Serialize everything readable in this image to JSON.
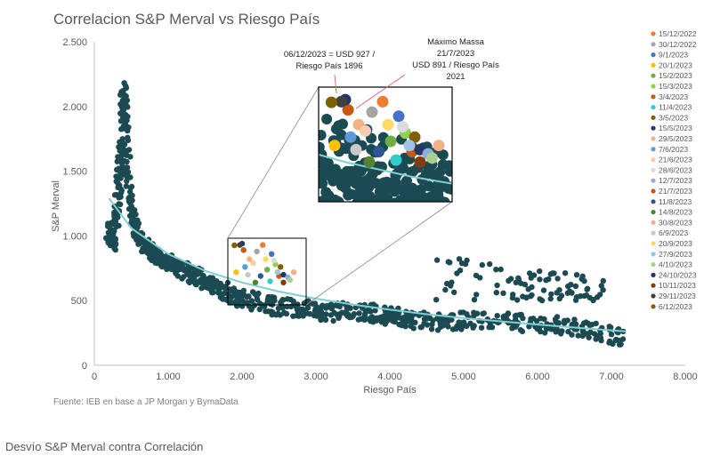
{
  "chart_data": {
    "type": "scatter",
    "title": "Correlacion S&P Merval vs Riesgo País",
    "xlabel": "Riesgo País",
    "ylabel": "S&P Merval",
    "xlim": [
      0,
      8000
    ],
    "ylim": [
      0,
      2500
    ],
    "xticks": [
      0,
      1000,
      2000,
      3000,
      4000,
      5000,
      6000,
      7000,
      8000
    ],
    "xtick_labels": [
      "0",
      "1.000",
      "2.000",
      "3.000",
      "4.000",
      "5.000",
      "6.000",
      "7.000",
      "8.000"
    ],
    "yticks": [
      0,
      500,
      1000,
      1500,
      2000,
      2500
    ],
    "ytick_labels": [
      "0",
      "500",
      "1.000",
      "1.500",
      "2.000",
      "2.500"
    ],
    "grid": false,
    "legend_position": "right",
    "colors": {
      "history": "#1b4a52",
      "trend": "#7fd0d3",
      "axis": "#bfbfbf"
    },
    "history_shape": [
      [
        200,
        1050
      ],
      [
        250,
        950
      ],
      [
        300,
        1150
      ],
      [
        350,
        1500
      ],
      [
        380,
        1900
      ],
      [
        400,
        2150
      ],
      [
        430,
        1700
      ],
      [
        480,
        1250
      ],
      [
        550,
        1050
      ],
      [
        650,
        950
      ],
      [
        750,
        880
      ],
      [
        850,
        850
      ],
      [
        950,
        800
      ],
      [
        1100,
        760
      ],
      [
        1250,
        720
      ],
      [
        1400,
        680
      ],
      [
        1600,
        620
      ],
      [
        1800,
        560
      ],
      [
        2000,
        520
      ],
      [
        2300,
        470
      ],
      [
        2600,
        450
      ],
      [
        2900,
        430
      ],
      [
        3200,
        410
      ],
      [
        3500,
        420
      ],
      [
        3800,
        400
      ],
      [
        4000,
        380
      ],
      [
        4200,
        360
      ],
      [
        4500,
        340
      ],
      [
        4800,
        330
      ],
      [
        5200,
        360
      ],
      [
        5600,
        340
      ],
      [
        6000,
        320
      ],
      [
        6400,
        300
      ],
      [
        6800,
        260
      ],
      [
        7200,
        200
      ]
    ],
    "trend": [
      [
        200,
        1290
      ],
      [
        500,
        1060
      ],
      [
        1000,
        860
      ],
      [
        1500,
        730
      ],
      [
        2000,
        640
      ],
      [
        2500,
        570
      ],
      [
        3000,
        515
      ],
      [
        3500,
        470
      ],
      [
        4000,
        430
      ],
      [
        4500,
        395
      ],
      [
        5000,
        365
      ],
      [
        5500,
        340
      ],
      [
        6000,
        315
      ],
      [
        6500,
        292
      ],
      [
        7200,
        262
      ]
    ],
    "series": [
      {
        "name": "15/12/2022",
        "color": "#ed7d31",
        "x": 2280,
        "y": 930
      },
      {
        "name": "30/12/2022",
        "color": "#a5a5a5",
        "x": 2200,
        "y": 880
      },
      {
        "name": "9/1/2023",
        "color": "#4472c4",
        "x": 2400,
        "y": 860
      },
      {
        "name": "20/1/2023",
        "color": "#ffc000",
        "x": 1920,
        "y": 720
      },
      {
        "name": "15/2/2023",
        "color": "#70ad47",
        "x": 2340,
        "y": 740
      },
      {
        "name": "15/3/2023",
        "color": "#92d050",
        "x": 2450,
        "y": 780
      },
      {
        "name": "3/4/2023",
        "color": "#c55a11",
        "x": 2500,
        "y": 690
      },
      {
        "name": "11/4/2023",
        "color": "#33cccc",
        "x": 2380,
        "y": 650
      },
      {
        "name": "3/5/2023",
        "color": "#806000",
        "x": 2520,
        "y": 760
      },
      {
        "name": "15/5/2023",
        "color": "#203864",
        "x": 2560,
        "y": 700
      },
      {
        "name": "29/5/2023",
        "color": "#f4b183",
        "x": 2100,
        "y": 820
      },
      {
        "name": "7/6/2023",
        "color": "#5b9bd5",
        "x": 2040,
        "y": 760
      },
      {
        "name": "21/6/2023",
        "color": "#f8cbad",
        "x": 2150,
        "y": 790
      },
      {
        "name": "28/6/2023",
        "color": "#dbdbdb",
        "x": 2430,
        "y": 810
      },
      {
        "name": "12/7/2023",
        "color": "#8faadc",
        "x": 2620,
        "y": 680
      },
      {
        "name": "21/7/2023",
        "color": "#c65911",
        "x": 2021,
        "y": 891
      },
      {
        "name": "11/8/2023",
        "color": "#2f5597",
        "x": 2250,
        "y": 690
      },
      {
        "name": "14/8/2023",
        "color": "#548235",
        "x": 2180,
        "y": 640
      },
      {
        "name": "30/8/2023",
        "color": "#f4b084",
        "x": 2700,
        "y": 720
      },
      {
        "name": "6/9/2023",
        "color": "#c9c9c9",
        "x": 2080,
        "y": 700
      },
      {
        "name": "20/9/2023",
        "color": "#ffd966",
        "x": 2320,
        "y": 820
      },
      {
        "name": "27/9/2023",
        "color": "#9dc3e6",
        "x": 2480,
        "y": 720
      },
      {
        "name": "4/10/2023",
        "color": "#a9d18e",
        "x": 2650,
        "y": 660
      },
      {
        "name": "24/10/2023",
        "color": "#1f3864",
        "x": 2000,
        "y": 940
      },
      {
        "name": "10/11/2023",
        "color": "#843c0c",
        "x": 2560,
        "y": 640
      },
      {
        "name": "29/11/2023",
        "color": "#404040",
        "x": 1970,
        "y": 930
      },
      {
        "name": "6/12/2023",
        "color": "#7f6000",
        "x": 1896,
        "y": 927
      }
    ],
    "annotations": [
      {
        "text": [
          "06/12/2023 = USD 927 /",
          "Riesgo País 1896"
        ]
      },
      {
        "text": [
          "Máximo Massa",
          "21/7/2023",
          "USD 891 / Riesgo País",
          "2021"
        ]
      }
    ],
    "source": "Fuente: IEB en base a JP Morgan y BymaData"
  },
  "footer": {
    "next_section_title": "Desvío S&P Merval contra Correlación"
  }
}
